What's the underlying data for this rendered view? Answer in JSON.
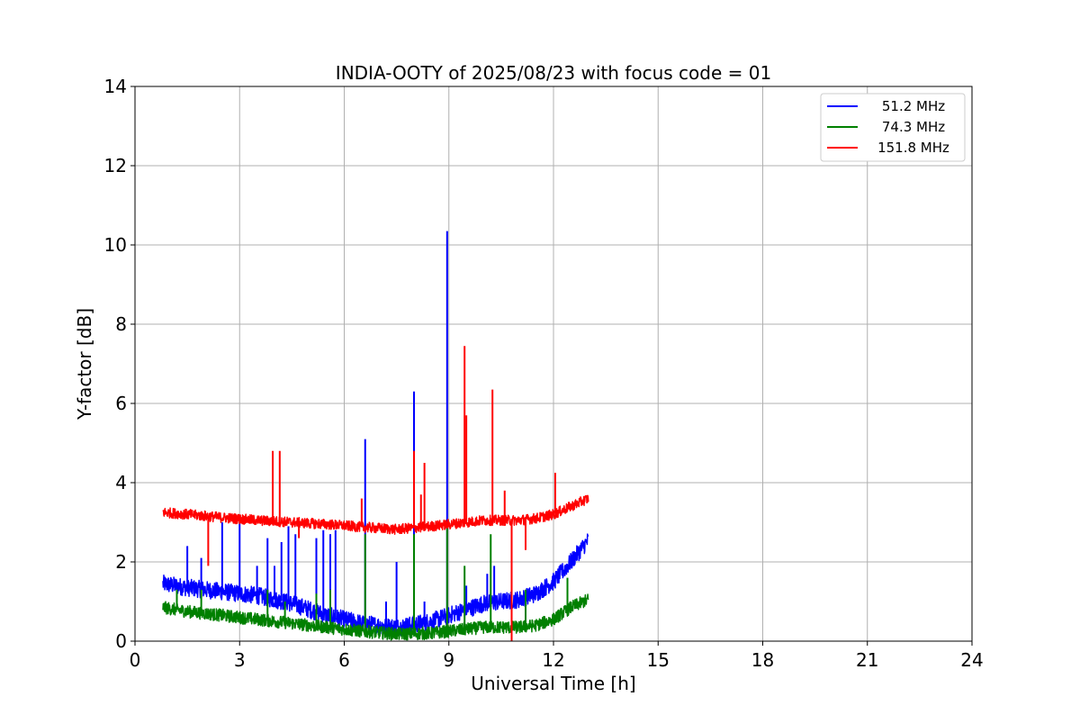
{
  "chart_data": {
    "type": "line",
    "title": "INDIA-OOTY of 2025/08/23 with focus code = 01",
    "xlabel": "Universal Time [h]",
    "ylabel": "Y-factor [dB]",
    "xlim": [
      0,
      24
    ],
    "ylim": [
      0,
      14
    ],
    "xticks": [
      "0",
      "3",
      "6",
      "9",
      "12",
      "15",
      "18",
      "21",
      "24"
    ],
    "yticks": [
      "0",
      "2",
      "4",
      "6",
      "8",
      "10",
      "12",
      "14"
    ],
    "grid": true,
    "legend_position": "top-right",
    "series": [
      {
        "name": "51.2 MHz",
        "color": "#0000ff",
        "noise": 0.22,
        "x": [
          0.8,
          1.5,
          2.5,
          3.5,
          4.5,
          5.5,
          6.5,
          7.5,
          8.5,
          9.0,
          9.5,
          10.0,
          10.5,
          11.0,
          11.5,
          12.0,
          12.5,
          13.0
        ],
        "y": [
          1.45,
          1.35,
          1.25,
          1.15,
          0.95,
          0.65,
          0.45,
          0.35,
          0.5,
          0.65,
          0.8,
          0.95,
          1.0,
          1.05,
          1.2,
          1.5,
          2.0,
          2.55
        ],
        "spikes": [
          [
            1.5,
            2.4
          ],
          [
            1.9,
            2.1
          ],
          [
            2.5,
            3.0
          ],
          [
            3.0,
            3.0
          ],
          [
            3.5,
            1.9
          ],
          [
            3.8,
            2.6
          ],
          [
            4.0,
            1.9
          ],
          [
            4.2,
            2.5
          ],
          [
            4.4,
            2.9
          ],
          [
            4.6,
            2.7
          ],
          [
            5.2,
            2.6
          ],
          [
            5.4,
            2.8
          ],
          [
            5.6,
            2.7
          ],
          [
            5.75,
            2.8
          ],
          [
            6.6,
            5.1
          ],
          [
            7.2,
            1.0
          ],
          [
            7.5,
            2.0
          ],
          [
            8.0,
            6.3
          ],
          [
            8.3,
            1.0
          ],
          [
            8.95,
            10.35
          ],
          [
            9.5,
            1.4
          ],
          [
            10.1,
            1.7
          ],
          [
            10.3,
            1.9
          ],
          [
            10.8,
            1.4
          ]
        ]
      },
      {
        "name": "74.3 MHz",
        "color": "#008000",
        "noise": 0.16,
        "x": [
          0.8,
          1.5,
          2.5,
          3.5,
          4.5,
          5.5,
          6.5,
          7.5,
          8.5,
          9.0,
          9.5,
          10.0,
          10.5,
          11.0,
          11.5,
          12.0,
          12.5,
          13.0
        ],
        "y": [
          0.85,
          0.75,
          0.65,
          0.55,
          0.45,
          0.35,
          0.25,
          0.18,
          0.2,
          0.25,
          0.3,
          0.35,
          0.35,
          0.35,
          0.4,
          0.55,
          0.85,
          1.05
        ],
        "spikes": [
          [
            1.2,
            1.3
          ],
          [
            1.9,
            1.3
          ],
          [
            3.8,
            1.3
          ],
          [
            4.3,
            1.0
          ],
          [
            5.2,
            1.2
          ],
          [
            5.6,
            1.3
          ],
          [
            6.6,
            2.7
          ],
          [
            8.0,
            2.7
          ],
          [
            8.95,
            2.9
          ],
          [
            9.45,
            1.9
          ],
          [
            10.2,
            2.7
          ],
          [
            11.2,
            1.3
          ],
          [
            12.4,
            1.6
          ]
        ]
      },
      {
        "name": "151.8 MHz",
        "color": "#ff0000",
        "noise": 0.13,
        "x": [
          0.8,
          1.5,
          2.5,
          3.5,
          4.5,
          5.5,
          6.5,
          7.5,
          8.5,
          9.0,
          9.5,
          10.0,
          10.5,
          11.0,
          11.5,
          12.0,
          12.5,
          13.0
        ],
        "y": [
          3.25,
          3.2,
          3.12,
          3.05,
          3.0,
          2.95,
          2.88,
          2.82,
          2.9,
          2.95,
          3.0,
          3.05,
          3.05,
          3.05,
          3.1,
          3.2,
          3.4,
          3.6
        ],
        "spikes": [
          [
            2.1,
            1.9
          ],
          [
            3.95,
            4.8
          ],
          [
            4.15,
            4.8
          ],
          [
            4.7,
            2.6
          ],
          [
            6.5,
            3.6
          ],
          [
            8.0,
            4.8
          ],
          [
            8.2,
            3.7
          ],
          [
            8.3,
            4.5
          ],
          [
            9.45,
            7.45
          ],
          [
            9.5,
            5.7
          ],
          [
            10.25,
            6.35
          ],
          [
            10.6,
            3.8
          ],
          [
            10.8,
            0.0
          ],
          [
            11.2,
            2.3
          ],
          [
            12.05,
            4.25
          ]
        ]
      }
    ]
  }
}
